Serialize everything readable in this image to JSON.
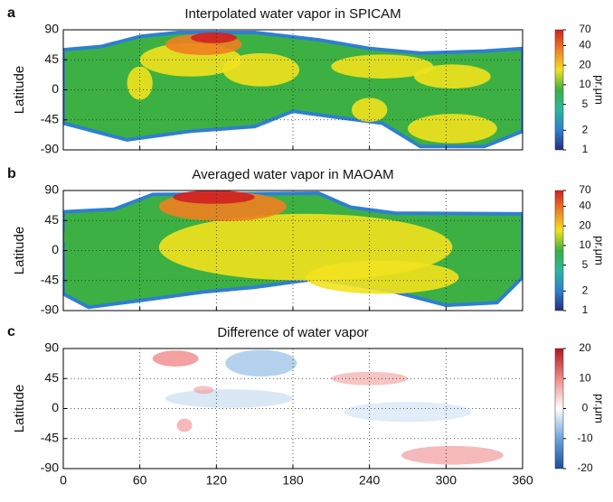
{
  "chart_data": [
    {
      "type": "heatmap",
      "panel": "a",
      "title": "Interpolated water vapor in SPICAM",
      "ylabel": "Latitude",
      "xlim": [
        0,
        360
      ],
      "xticks": [
        0,
        60,
        120,
        180,
        240,
        300,
        360
      ],
      "show_xtick_labels": false,
      "ylim": [
        -90,
        90
      ],
      "yticks": [
        -90,
        -45,
        0,
        45,
        90
      ],
      "grid": true,
      "colorbar": {
        "label": "pr.μm",
        "scale": "log",
        "lim": [
          1,
          70
        ],
        "ticks": [
          1,
          2,
          5,
          10,
          20,
          40,
          70
        ],
        "colors": [
          "#24307f",
          "#2f7fd0",
          "#27b8a0",
          "#3cb043",
          "#f2e21e",
          "#f08020",
          "#d02020"
        ]
      }
    },
    {
      "type": "heatmap",
      "panel": "b",
      "title": "Averaged water vapor in MAOAM",
      "ylabel": "Latitude",
      "xlim": [
        0,
        360
      ],
      "xticks": [
        0,
        60,
        120,
        180,
        240,
        300,
        360
      ],
      "show_xtick_labels": false,
      "ylim": [
        -90,
        90
      ],
      "yticks": [
        -90,
        -45,
        0,
        45,
        90
      ],
      "grid": true,
      "colorbar": {
        "label": "pr.μm",
        "scale": "log",
        "lim": [
          1,
          70
        ],
        "ticks": [
          1,
          2,
          5,
          10,
          20,
          40,
          70
        ],
        "colors": [
          "#24307f",
          "#2f7fd0",
          "#27b8a0",
          "#3cb043",
          "#f2e21e",
          "#f08020",
          "#d02020"
        ]
      }
    },
    {
      "type": "heatmap",
      "panel": "c",
      "title": "Difference of water vapor",
      "ylabel": "Latitude",
      "xlim": [
        0,
        360
      ],
      "xticks": [
        0,
        60,
        120,
        180,
        240,
        300,
        360
      ],
      "show_xtick_labels": true,
      "ylim": [
        -90,
        90
      ],
      "yticks": [
        -90,
        -45,
        0,
        45,
        90
      ],
      "grid": true,
      "colorbar": {
        "label": "pr.μm",
        "scale": "linear",
        "lim": [
          -20,
          20
        ],
        "ticks": [
          -20,
          -10,
          0,
          10,
          20
        ],
        "colors": [
          "#1c4f9c",
          "#6aa5dd",
          "#ffffff",
          "#f08a8a",
          "#b3151c"
        ]
      }
    }
  ]
}
